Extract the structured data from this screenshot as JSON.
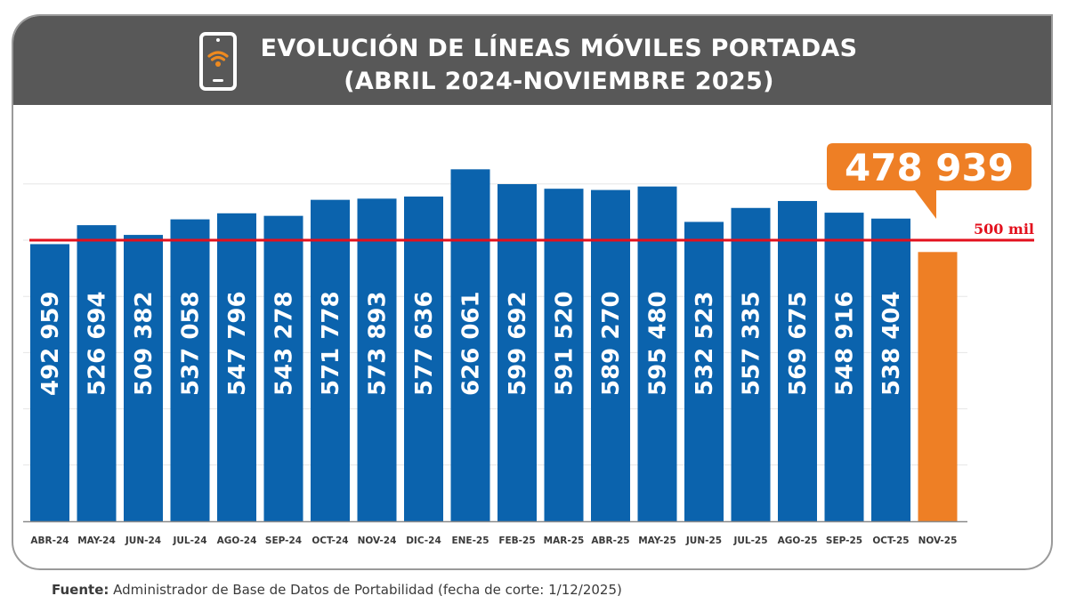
{
  "title": {
    "line1": "EVOLUCIÓN DE LÍNEAS MÓVILES PORTADAS",
    "line2": "(ABRIL 2024-NOVIEMBRE 2025)",
    "icon": "smartphone-wifi-icon"
  },
  "colors": {
    "header_bg": "#585858",
    "bar_blue": "#0b63ad",
    "bar_highlight": "#ee7f25",
    "reference_line": "#e3101d",
    "gridline": "#e6e6e6",
    "wifi_icon": "#ee8a1f"
  },
  "callout": {
    "value_text": "478 939"
  },
  "source": {
    "label": "Fuente:",
    "text": " Administrador de Base de Datos de Portabilidad (fecha de corte: 1/12/2025)"
  },
  "chart_data": {
    "type": "bar",
    "title": "EVOLUCIÓN DE LÍNEAS MÓVILES PORTADAS (ABRIL 2024-NOVIEMBRE 2025)",
    "xlabel": "",
    "ylabel": "",
    "ylim": [
      0,
      600000
    ],
    "grid": true,
    "gridline_step": 100000,
    "categories": [
      "ABR-24",
      "MAY-24",
      "JUN-24",
      "JUL-24",
      "AGO-24",
      "SEP-24",
      "OCT-24",
      "NOV-24",
      "DIC-24",
      "ENE-25",
      "FEB-25",
      "MAR-25",
      "ABR-25",
      "MAY-25",
      "JUN-25",
      "JUL-25",
      "AGO-25",
      "SEP-25",
      "OCT-25",
      "NOV-25"
    ],
    "values": [
      492959,
      526694,
      509382,
      537058,
      547796,
      543278,
      571778,
      573893,
      577636,
      626061,
      599692,
      591520,
      589270,
      595480,
      532523,
      557335,
      569675,
      548916,
      538404,
      478939
    ],
    "value_labels": [
      "492 959",
      "526 694",
      "509 382",
      "537 058",
      "547 796",
      "543 278",
      "571 778",
      "573 893",
      "577 636",
      "626 061",
      "599 692",
      "591 520",
      "589 270",
      "595 480",
      "532 523",
      "557 335",
      "569 675",
      "548 916",
      "538 404",
      ""
    ],
    "highlight_index": 19,
    "reference_line": {
      "value": 500000,
      "label": "500 mil"
    },
    "annotations": [
      {
        "category": "NOV-25",
        "text": "478 939",
        "style": "callout"
      }
    ]
  }
}
